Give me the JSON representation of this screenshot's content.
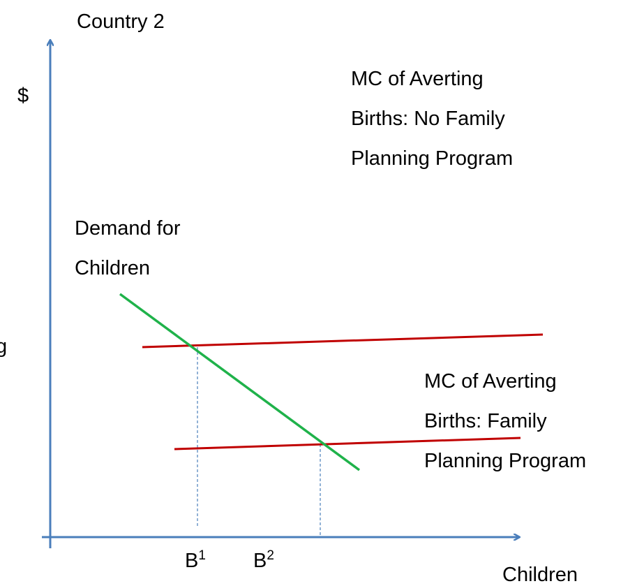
{
  "title": "Country 2",
  "y_axis_label": "$",
  "x_axis_label": "Children",
  "left_edge_text": "g",
  "annotations": [
    {
      "lines": [
        "MC of Averting",
        "Births: No Family",
        "Planning Program"
      ]
    },
    {
      "lines": [
        "Demand for",
        "Children"
      ]
    },
    {
      "lines": [
        "MC of Averting",
        "Births: Family",
        "Planning Program"
      ]
    }
  ],
  "x_ticks": [
    {
      "base": "B",
      "sup": "1"
    },
    {
      "base": "B",
      "sup": "2"
    }
  ]
}
